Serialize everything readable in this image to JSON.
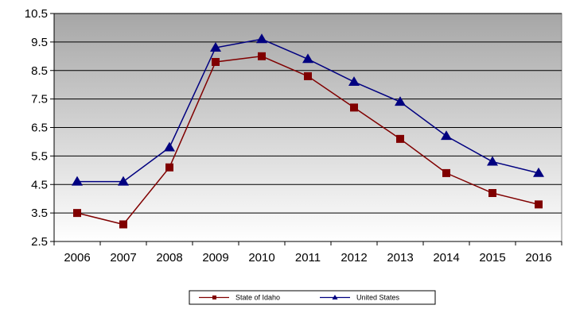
{
  "chart_data": {
    "type": "line",
    "title": "",
    "xlabel": "",
    "ylabel": "",
    "x": [
      "2006",
      "2007",
      "2008",
      "2009",
      "2010",
      "2011",
      "2012",
      "2013",
      "2014",
      "2015",
      "2016"
    ],
    "ylim": [
      2.5,
      10.5
    ],
    "yticks": [
      "2.5",
      "3.5",
      "4.5",
      "5.5",
      "6.5",
      "7.5",
      "8.5",
      "9.5",
      "10.5"
    ],
    "grid": true,
    "legend": "bottom",
    "series": [
      {
        "name": "State of Idaho",
        "color": "#800000",
        "marker": "square",
        "values": [
          3.5,
          3.1,
          5.1,
          8.8,
          9.0,
          8.3,
          7.2,
          6.1,
          4.9,
          4.2,
          3.8
        ]
      },
      {
        "name": "United States",
        "color": "#000080",
        "marker": "triangle",
        "values": [
          4.6,
          4.6,
          5.8,
          9.3,
          9.6,
          8.9,
          8.1,
          7.4,
          6.2,
          5.3,
          4.9
        ]
      }
    ]
  }
}
